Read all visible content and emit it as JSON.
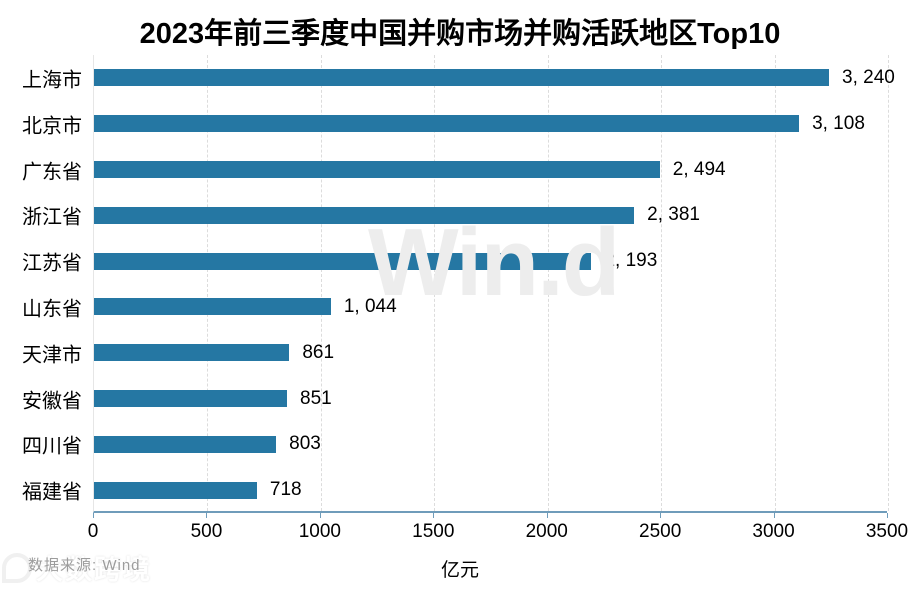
{
  "title": "2023年前三季度中国并购市场并购活跃地区Top10",
  "source_note": "数据来源: Wind",
  "watermark_center": "Win.d",
  "watermark_corner": "大数跨境",
  "colors": {
    "bar": "#2577a3",
    "axis_line": "#6f9cba",
    "gridline": "#dcdcdc",
    "text": "#000000",
    "source_text": "#9c9c9c",
    "watermark": "#ededed",
    "background": "#ffffff"
  },
  "chart_data": {
    "type": "bar",
    "orientation": "horizontal",
    "title": "2023年前三季度中国并购市场并购活跃地区Top10",
    "categories": [
      "上海市",
      "北京市",
      "广东省",
      "浙江省",
      "江苏省",
      "山东省",
      "天津市",
      "安徽省",
      "四川省",
      "福建省"
    ],
    "values": [
      3240,
      3108,
      2494,
      2381,
      2193,
      1044,
      861,
      851,
      803,
      718
    ],
    "value_labels": [
      "3, 240",
      "3, 108",
      "2, 494",
      "2, 381",
      "2, 193",
      "1, 044",
      "861",
      "851",
      "803",
      "718"
    ],
    "xlabel": "亿元",
    "ylabel": "",
    "unit": "亿元",
    "xlim": [
      0,
      3500
    ],
    "xticks": [
      0,
      500,
      1000,
      1500,
      2000,
      2500,
      3000,
      3500
    ],
    "grid": "vertical-dashed",
    "legend_position": "none",
    "source": "数据来源: Wind",
    "bar_color": "#2577a3"
  }
}
